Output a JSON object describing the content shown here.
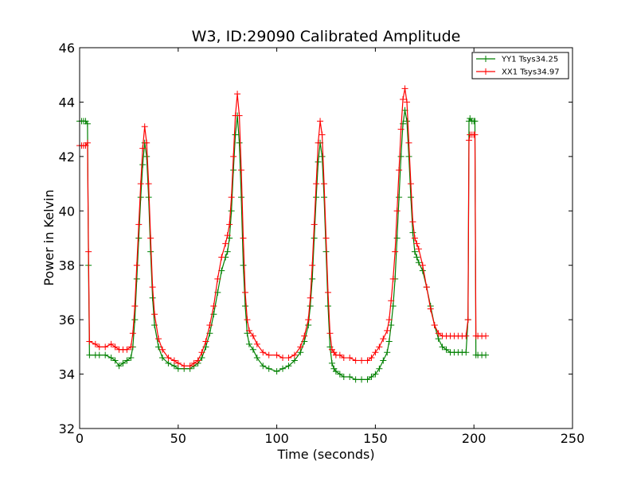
{
  "chart_data": {
    "type": "line",
    "title": "W3, ID:29090 Calibrated Amplitude",
    "xlabel": "Time (seconds)",
    "ylabel": "Power in Kelvin",
    "xlim": [
      0,
      250
    ],
    "ylim": [
      32,
      46
    ],
    "xticks": [
      "0",
      "50",
      "100",
      "150",
      "200",
      "250"
    ],
    "yticks": [
      "32",
      "34",
      "36",
      "38",
      "40",
      "42",
      "44",
      "46"
    ],
    "grid": false,
    "legend_position": "top-right",
    "marker": "+",
    "series": [
      {
        "name": "YY1 Tsys34.25",
        "color": "#008000",
        "x": [
          0,
          1,
          2,
          3,
          4,
          4.5,
          5,
          8,
          10,
          13,
          16,
          18,
          20,
          22,
          24,
          26,
          27,
          28,
          29,
          30,
          31,
          32,
          33,
          34,
          35,
          36,
          37,
          38,
          40,
          42,
          45,
          48,
          50,
          53,
          56,
          58,
          60,
          62,
          64,
          66,
          68,
          70,
          72,
          74,
          75,
          76,
          77,
          78,
          79,
          80,
          81,
          82,
          83,
          84,
          85,
          86,
          88,
          90,
          93,
          96,
          100,
          103,
          106,
          109,
          112,
          114,
          116,
          117,
          118,
          119,
          120,
          121,
          122,
          123,
          124,
          125,
          126,
          127,
          128,
          129,
          130,
          132,
          134,
          137,
          140,
          143,
          146,
          148,
          150,
          152,
          154,
          156,
          157,
          158,
          159,
          160,
          161,
          162,
          163,
          164,
          165,
          166,
          167,
          168,
          169,
          170,
          171,
          172,
          174,
          176,
          178,
          180,
          182,
          184,
          186,
          188,
          190,
          192,
          194,
          196,
          197,
          197.5,
          198,
          199,
          200,
          200.5,
          201,
          202,
          204,
          206
        ],
        "y": [
          43.3,
          43.3,
          43.3,
          43.3,
          43.2,
          38.0,
          34.7,
          34.7,
          34.7,
          34.7,
          34.6,
          34.5,
          34.3,
          34.4,
          34.5,
          34.6,
          35.0,
          36.0,
          37.5,
          39.0,
          40.5,
          41.7,
          42.5,
          42.0,
          40.5,
          38.5,
          36.8,
          35.8,
          35.0,
          34.6,
          34.4,
          34.3,
          34.2,
          34.2,
          34.2,
          34.3,
          34.4,
          34.6,
          35.0,
          35.5,
          36.2,
          37.0,
          37.8,
          38.3,
          38.5,
          39.0,
          40.0,
          41.5,
          42.8,
          43.5,
          42.5,
          40.5,
          38.0,
          36.5,
          35.5,
          35.1,
          34.9,
          34.6,
          34.3,
          34.2,
          34.1,
          34.2,
          34.3,
          34.5,
          34.8,
          35.2,
          35.8,
          36.5,
          37.5,
          39.0,
          40.5,
          41.8,
          42.5,
          42.0,
          40.5,
          38.5,
          36.5,
          35.0,
          34.4,
          34.2,
          34.1,
          34.0,
          33.9,
          33.9,
          33.8,
          33.8,
          33.8,
          33.9,
          34.0,
          34.2,
          34.5,
          34.8,
          35.2,
          35.8,
          36.5,
          37.5,
          39.0,
          40.5,
          42.0,
          43.2,
          43.7,
          43.3,
          42.0,
          40.5,
          39.2,
          38.5,
          38.3,
          38.1,
          37.8,
          37.2,
          36.5,
          35.8,
          35.3,
          35.0,
          34.9,
          34.8,
          34.8,
          34.8,
          34.8,
          34.8,
          36.0,
          43.3,
          43.4,
          43.3,
          43.3,
          43.3,
          34.7,
          34.7,
          34.7,
          34.7
        ]
      },
      {
        "name": "XX1 Tsys34.97",
        "color": "#ff0000",
        "x": [
          0,
          1,
          2,
          3,
          4,
          4.5,
          5,
          8,
          10,
          13,
          16,
          18,
          20,
          22,
          24,
          26,
          27,
          28,
          29,
          30,
          31,
          32,
          33,
          34,
          35,
          36,
          37,
          38,
          40,
          42,
          45,
          48,
          50,
          53,
          56,
          58,
          60,
          62,
          64,
          66,
          68,
          70,
          72,
          74,
          75,
          76,
          77,
          78,
          79,
          80,
          81,
          82,
          83,
          84,
          85,
          86,
          88,
          90,
          93,
          96,
          100,
          103,
          106,
          109,
          112,
          114,
          116,
          117,
          118,
          119,
          120,
          121,
          122,
          123,
          124,
          125,
          126,
          127,
          128,
          129,
          130,
          132,
          134,
          137,
          140,
          143,
          146,
          148,
          150,
          152,
          154,
          156,
          157,
          158,
          159,
          160,
          161,
          162,
          163,
          164,
          165,
          166,
          167,
          168,
          169,
          170,
          171,
          172,
          174,
          176,
          178,
          180,
          182,
          184,
          186,
          188,
          190,
          192,
          194,
          196,
          197,
          197.5,
          198,
          199,
          200,
          200.5,
          201,
          202,
          204,
          206
        ],
        "y": [
          42.4,
          42.4,
          42.4,
          42.4,
          42.5,
          38.5,
          35.2,
          35.1,
          35.0,
          35.0,
          35.1,
          35.0,
          34.9,
          34.9,
          34.9,
          35.0,
          35.5,
          36.5,
          38.0,
          39.5,
          41.0,
          42.3,
          43.1,
          42.5,
          41.0,
          39.0,
          37.2,
          36.2,
          35.3,
          34.9,
          34.6,
          34.5,
          34.4,
          34.3,
          34.3,
          34.4,
          34.5,
          34.8,
          35.2,
          35.8,
          36.5,
          37.5,
          38.3,
          38.8,
          39.1,
          39.5,
          40.5,
          42.0,
          43.5,
          44.3,
          43.5,
          41.5,
          39.0,
          37.0,
          36.0,
          35.6,
          35.4,
          35.1,
          34.8,
          34.7,
          34.7,
          34.6,
          34.6,
          34.7,
          35.0,
          35.4,
          36.0,
          36.8,
          38.0,
          39.5,
          41.0,
          42.5,
          43.3,
          42.8,
          41.0,
          39.0,
          37.0,
          35.5,
          34.9,
          34.8,
          34.7,
          34.7,
          34.6,
          34.6,
          34.5,
          34.5,
          34.5,
          34.6,
          34.8,
          35.0,
          35.3,
          35.6,
          36.0,
          36.7,
          37.5,
          38.5,
          40.0,
          41.5,
          43.0,
          44.1,
          44.5,
          44.0,
          42.5,
          41.0,
          39.6,
          39.0,
          38.8,
          38.6,
          38.0,
          37.2,
          36.4,
          35.8,
          35.5,
          35.4,
          35.4,
          35.4,
          35.4,
          35.4,
          35.4,
          35.4,
          36.0,
          42.6,
          42.8,
          42.8,
          42.8,
          42.8,
          35.4,
          35.4,
          35.4,
          35.4
        ]
      }
    ]
  }
}
